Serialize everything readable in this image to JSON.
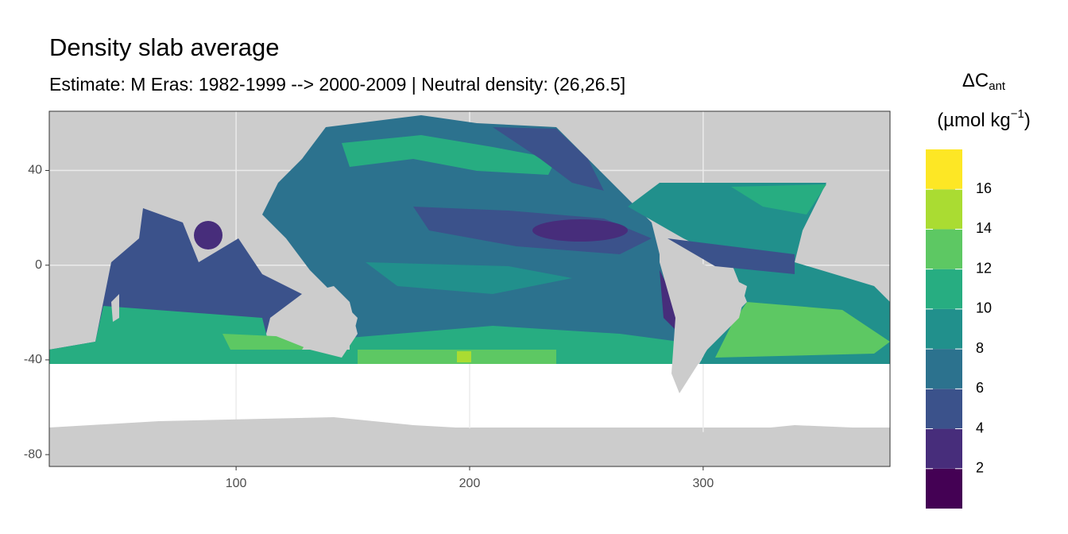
{
  "chart_data": {
    "type": "map",
    "title": "Density slab average",
    "subtitle": "Estimate: M Eras: 1982-1999 --> 2000-2009 | Neutral density: (26,26.5]",
    "xlim": [
      20,
      380
    ],
    "xticks": [
      100,
      200,
      300
    ],
    "ylim": [
      -85,
      65
    ],
    "yticks": [
      40,
      0,
      -40,
      -80
    ],
    "grid": true,
    "legend": {
      "title": "ΔC",
      "title_sub": "ant",
      "unit": "(µmol kg",
      "unit_sup": "−1",
      "unit_close": ")",
      "bins": [
        0,
        2,
        4,
        6,
        8,
        10,
        12,
        14,
        16,
        18
      ],
      "colors": [
        "#440154",
        "#472d7b",
        "#3b528b",
        "#2c728e",
        "#21908c",
        "#27ad81",
        "#5dc863",
        "#aadc32",
        "#fde725"
      ],
      "ticks": [
        2,
        4,
        6,
        8,
        10,
        12,
        14,
        16
      ]
    }
  }
}
